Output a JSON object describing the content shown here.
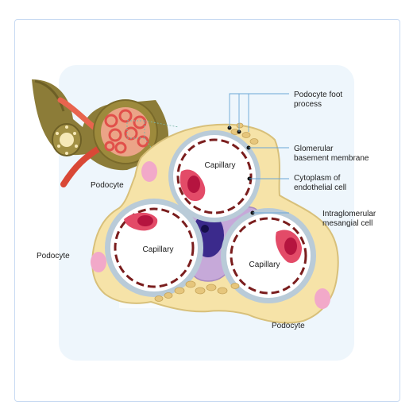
{
  "labels": {
    "podocyte_foot_process": "Podocyte foot\nprocess",
    "glomerular_basement_membrane": "Glomerular\nbasement membrane",
    "cytoplasm_endothelial": "Cytoplasm of\nendothelial cell",
    "intraglomerular_mesangial": "Intraglomerular\nmesangial cell",
    "capillary_top": "Capillary",
    "capillary_left": "Capillary",
    "capillary_right": "Capillary",
    "podocyte_upper": "Podocyte",
    "podocyte_left": "Podocyte",
    "podocyte_bottom": "Podocyte"
  },
  "colors": {
    "panel_bg": "#eef6fc",
    "podocyte": "#f6e3a8",
    "podocyte_outline": "#d8c07a",
    "foot_process": "#e6c67c",
    "basement_membrane": "#b9cbd8",
    "lumen": "#ffffff",
    "dashed_border": "#7a1d1d",
    "endothelial_cell": "#e34b68",
    "endothelial_nucleus": "#b5143f",
    "mesangial_cell": "#c6a9d9",
    "mesangial_nucleus": "#3b2a8c",
    "pink_nucleus": "#f2a9c9",
    "tubule": "#8c7c38",
    "leader_line": "#6aa6d6"
  }
}
